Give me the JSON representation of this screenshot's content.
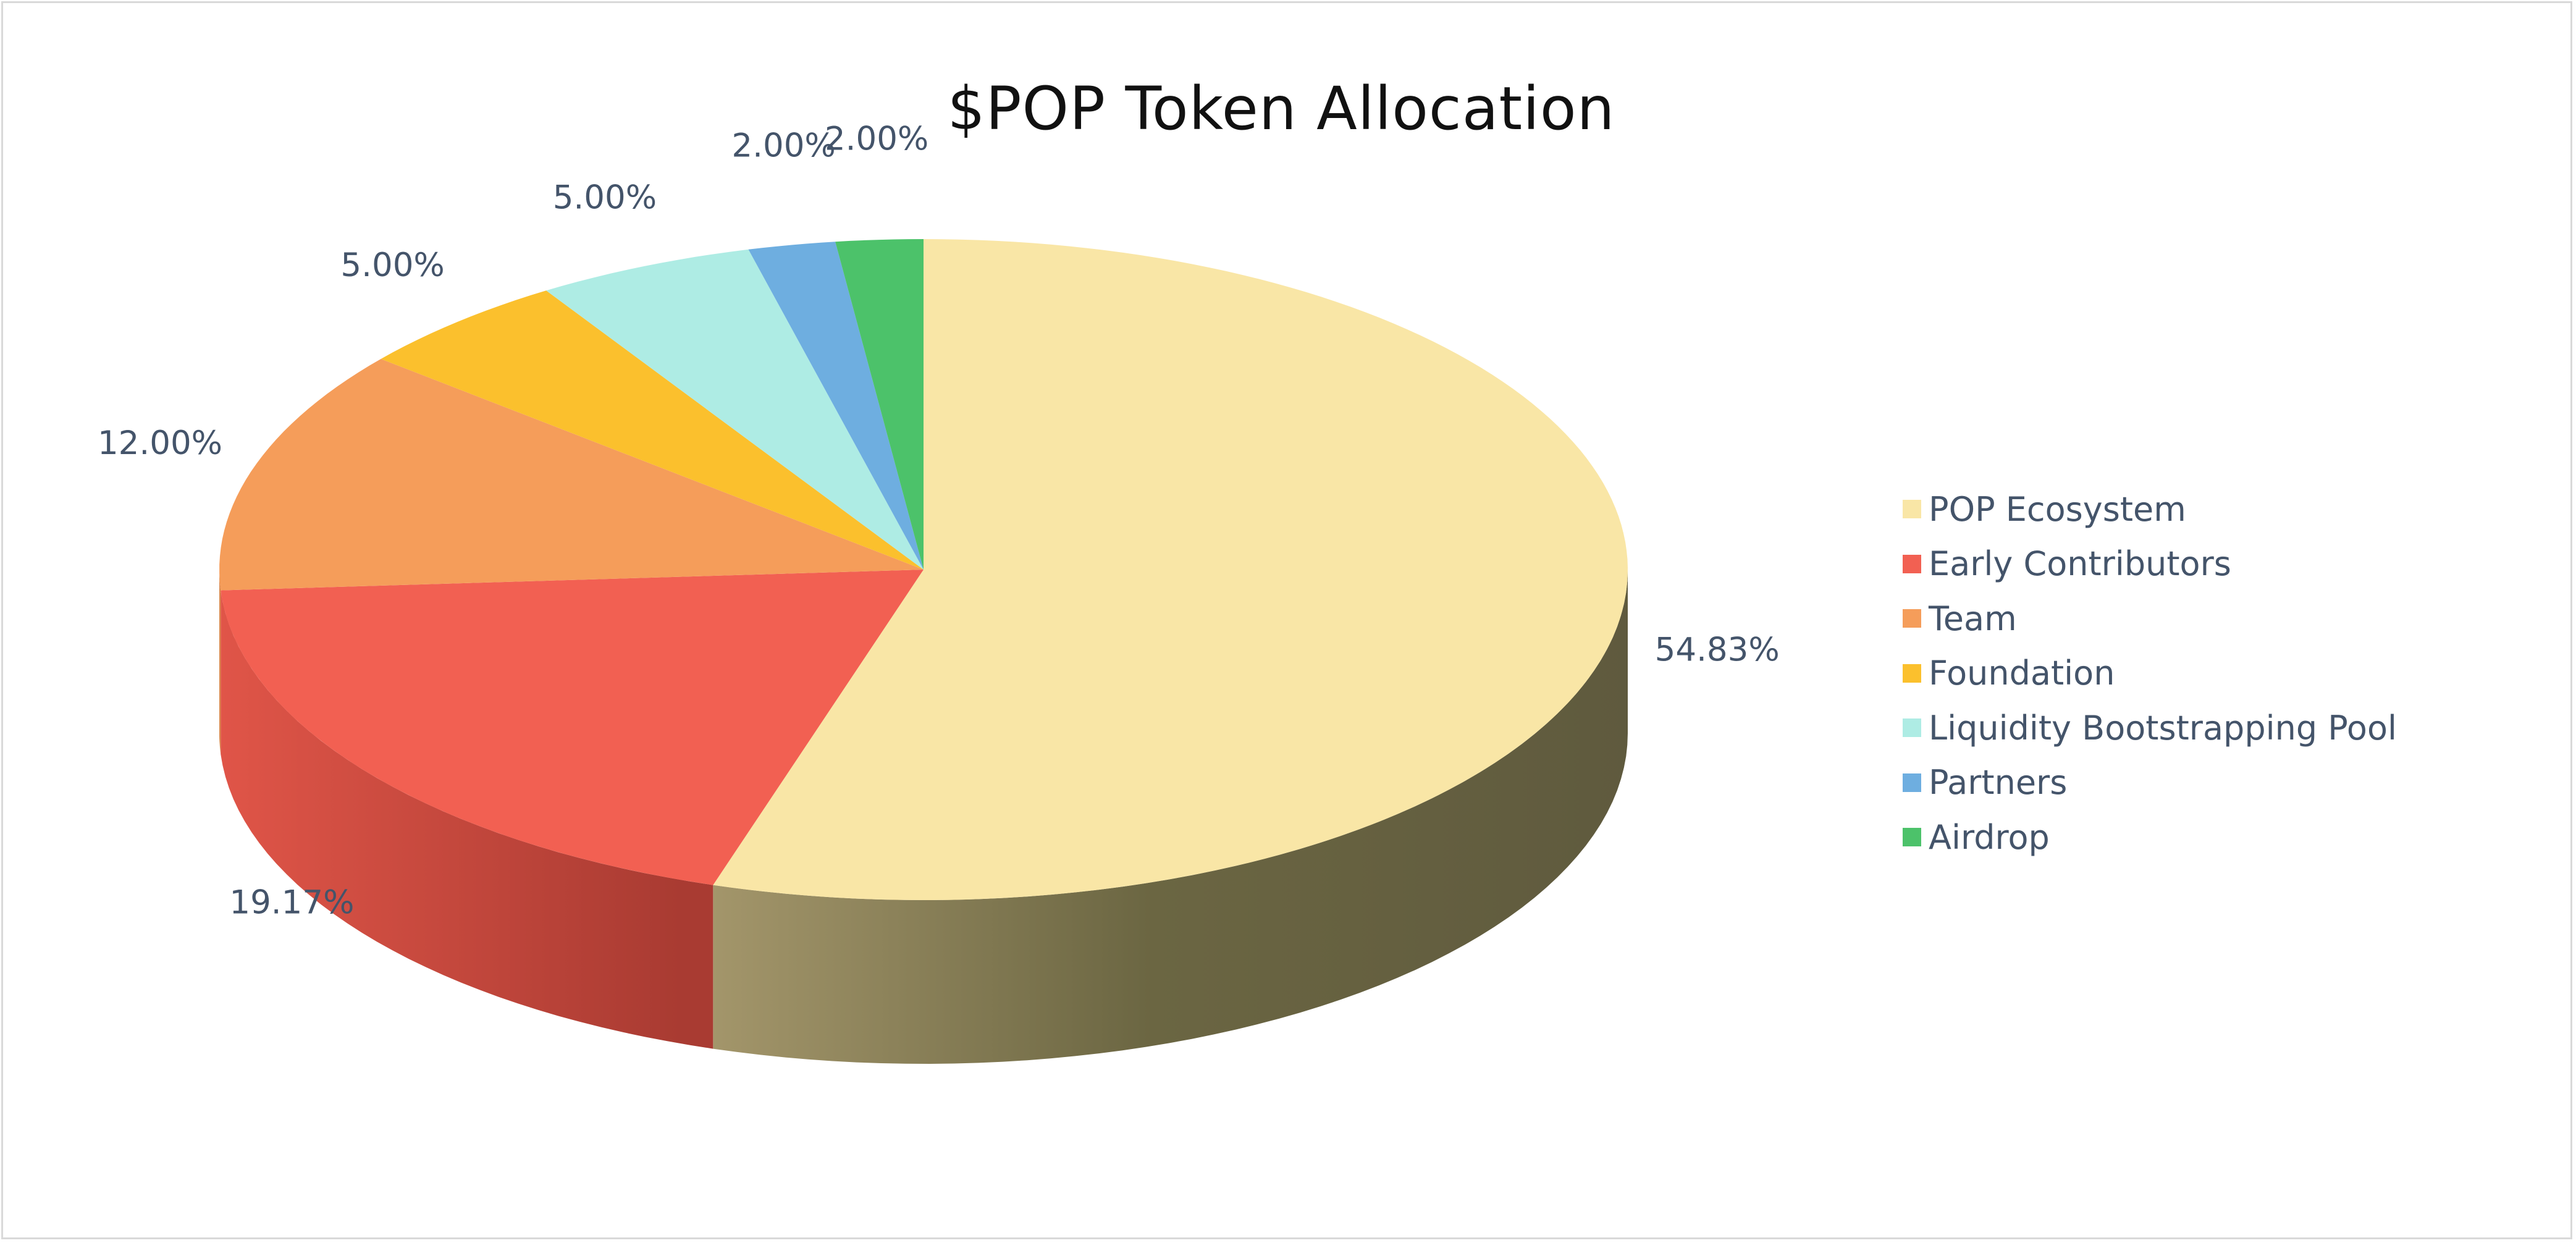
{
  "chart_data": {
    "type": "pie",
    "title": "$POP Token Allocation",
    "categories": [
      "POP Ecosystem",
      "Early Contributors",
      "Team",
      "Foundation",
      "Liquidity Bootstrapping Pool",
      "Partners",
      "Airdrop"
    ],
    "values": [
      54.83,
      19.17,
      12.0,
      5.0,
      5.0,
      2.0,
      2.0
    ],
    "data_labels": [
      "54.83%",
      "19.17%",
      "12.00%",
      "5.00%",
      "5.00%",
      "2.00%",
      "2.00%"
    ],
    "colors": [
      "#f9e6a6",
      "#f26052",
      "#f59d5a",
      "#fbc02d",
      "#aeece4",
      "#6eaee0",
      "#4cc26a"
    ],
    "side_colors": [
      "#6b6642",
      "#c8493f",
      "#d88447",
      "#e0a620",
      "#8fd3ca",
      "#5897c7",
      "#3da558"
    ],
    "style": "3d",
    "legend_position": "right"
  }
}
